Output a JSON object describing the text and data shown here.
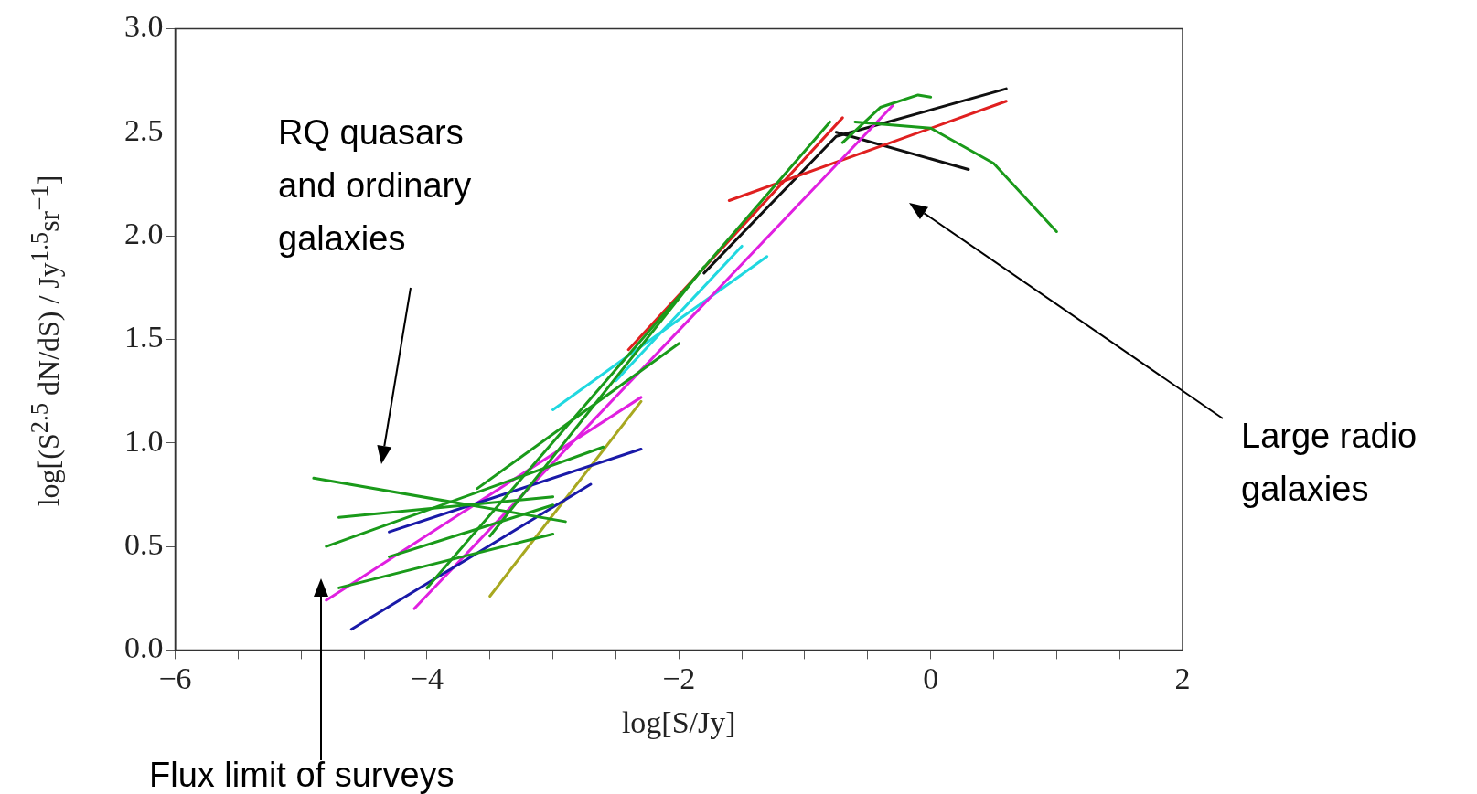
{
  "chart_data": {
    "type": "line",
    "xlabel": "log[S/Jy]",
    "ylabel": "log[(S$^{2.5}$ dN/dS) / Jy$^{1.5}$sr$^{−1}$]",
    "xlim": [
      -6,
      2
    ],
    "ylim": [
      0,
      3
    ],
    "xticks": [
      {
        "value": -6,
        "label": "−6"
      },
      {
        "value": -5.5,
        "label": null
      },
      {
        "value": -5,
        "label": null
      },
      {
        "value": -4.5,
        "label": null
      },
      {
        "value": -4,
        "label": "−4"
      },
      {
        "value": -3.5,
        "label": null
      },
      {
        "value": -3,
        "label": null
      },
      {
        "value": -2.5,
        "label": null
      },
      {
        "value": -2,
        "label": "−2"
      },
      {
        "value": -1.5,
        "label": null
      },
      {
        "value": -1,
        "label": null
      },
      {
        "value": -0.5,
        "label": null
      },
      {
        "value": 0,
        "label": "0"
      },
      {
        "value": 0.5,
        "label": null
      },
      {
        "value": 1,
        "label": null
      },
      {
        "value": 1.5,
        "label": null
      },
      {
        "value": 2,
        "label": "2"
      }
    ],
    "yticks": [
      {
        "value": 0,
        "label": "0.0"
      },
      {
        "value": 0.5,
        "label": "0.5"
      },
      {
        "value": 1,
        "label": "1.0"
      },
      {
        "value": 1.5,
        "label": "1.5"
      },
      {
        "value": 2,
        "label": "2.0"
      },
      {
        "value": 2.5,
        "label": "2.5"
      },
      {
        "value": 3,
        "label": "3.0"
      }
    ],
    "marker": "none",
    "legend": false,
    "annotations": [
      "RQ quasars and ordinary galaxies",
      "Large radio galaxies",
      "Flux limit of surveys"
    ],
    "series": [
      {
        "color": "#1a9a1a",
        "x": [
          -4.9,
          -2.9
        ],
        "values": [
          0.83,
          0.62
        ]
      },
      {
        "color": "#1a9a1a",
        "x": [
          -4.7,
          -3.0
        ],
        "values": [
          0.64,
          0.74
        ]
      },
      {
        "color": "#1a9a1a",
        "x": [
          -4.8,
          -2.6
        ],
        "values": [
          0.5,
          0.98
        ]
      },
      {
        "color": "#1a9a1a",
        "x": [
          -4.7,
          -3.0
        ],
        "values": [
          0.3,
          0.56
        ]
      },
      {
        "color": "#1a9a1a",
        "x": [
          -4.3,
          -3.0
        ],
        "values": [
          0.45,
          0.7
        ]
      },
      {
        "color": "#1a9a1a",
        "x": [
          -3.6,
          -2.0
        ],
        "values": [
          0.78,
          1.48
        ]
      },
      {
        "color": "#1a9a1a",
        "x": [
          -4.0,
          -0.8
        ],
        "values": [
          0.3,
          2.55
        ]
      },
      {
        "color": "#1a9a1a",
        "x": [
          -3.5,
          -1.8
        ],
        "values": [
          0.55,
          1.85
        ]
      },
      {
        "color": "#1a9a1a",
        "x": [
          -0.7,
          -0.4,
          -0.1,
          0.0
        ],
        "values": [
          2.45,
          2.62,
          2.68,
          2.67
        ]
      },
      {
        "color": "#1a9a1a",
        "x": [
          -0.6,
          0.0,
          0.5,
          1.0
        ],
        "values": [
          2.55,
          2.52,
          2.35,
          2.02
        ]
      },
      {
        "color": "#1a1aa8",
        "x": [
          -4.3,
          -2.3
        ],
        "values": [
          0.57,
          0.97
        ]
      },
      {
        "color": "#1a1aa8",
        "x": [
          -4.6,
          -2.7
        ],
        "values": [
          0.1,
          0.8
        ]
      },
      {
        "color": "#e020e0",
        "x": [
          -4.8,
          -2.3
        ],
        "values": [
          0.24,
          1.22
        ]
      },
      {
        "color": "#e020e0",
        "x": [
          -4.1,
          -0.3
        ],
        "values": [
          0.2,
          2.63
        ]
      },
      {
        "color": "#20d8e0",
        "x": [
          -3.0,
          -1.3
        ],
        "values": [
          1.16,
          1.9
        ]
      },
      {
        "color": "#20d8e0",
        "x": [
          -2.5,
          -1.5
        ],
        "values": [
          1.3,
          1.95
        ]
      },
      {
        "color": "#a8a820",
        "x": [
          -3.5,
          -2.3
        ],
        "values": [
          0.26,
          1.2
        ]
      },
      {
        "color": "#e02020",
        "x": [
          -2.4,
          -0.7
        ],
        "values": [
          1.45,
          2.57
        ]
      },
      {
        "color": "#e02020",
        "x": [
          -1.6,
          0.6
        ],
        "values": [
          2.17,
          2.65
        ]
      },
      {
        "color": "#101010",
        "x": [
          -1.8,
          -0.75,
          0.6
        ],
        "values": [
          1.82,
          2.48,
          2.71
        ]
      },
      {
        "color": "#101010",
        "x": [
          -0.75,
          0.3
        ],
        "values": [
          2.5,
          2.32
        ]
      }
    ]
  }
}
